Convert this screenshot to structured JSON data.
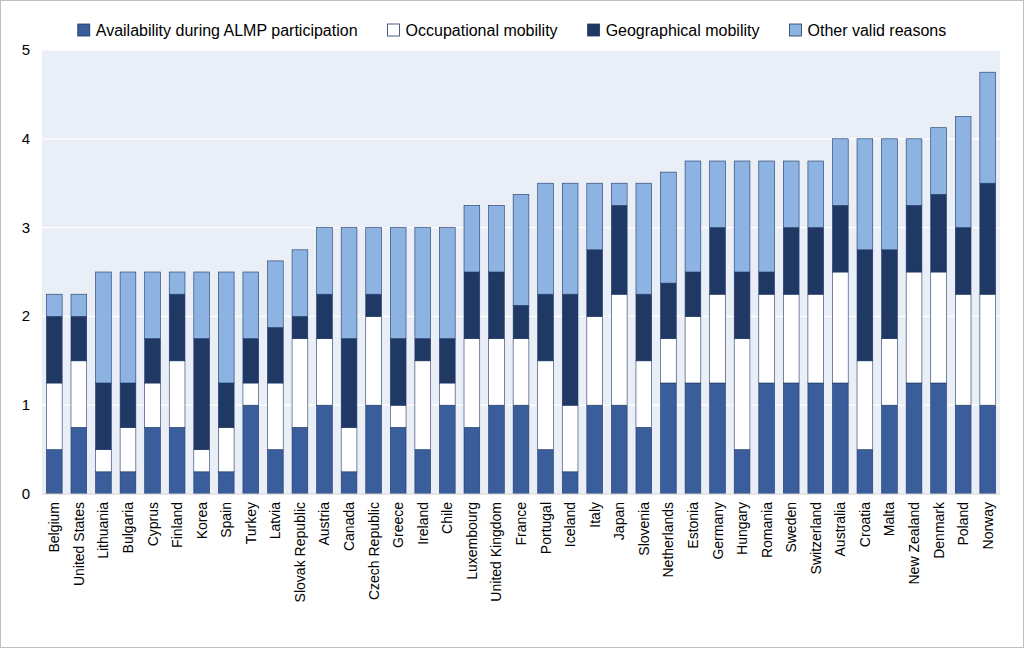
{
  "chart_data": {
    "type": "bar",
    "stacked": true,
    "grid": true,
    "legend": "top",
    "categories": [
      "Belgium",
      "United States",
      "Lithuania",
      "Bulgaria",
      "Cyprus",
      "Finland",
      "Korea",
      "Spain",
      "Turkey",
      "Latvia",
      "Slovak Republic",
      "Austria",
      "Canada",
      "Czech Republic",
      "Greece",
      "Ireland",
      "Chile",
      "Luxembourg",
      "United Kingdom",
      "France",
      "Portugal",
      "Iceland",
      "Italy",
      "Japan",
      "Slovenia",
      "Netherlands",
      "Estonia",
      "Germany",
      "Hungary",
      "Romania",
      "Sweden",
      "Switzerland",
      "Australia",
      "Croatia",
      "Malta",
      "New Zealand",
      "Denmark",
      "Poland",
      "Norway"
    ],
    "series": [
      {
        "name": "Availability during ALMP participation",
        "color": "#3a5e9c",
        "values": [
          0.5,
          0.75,
          0.25,
          0.25,
          0.75,
          0.75,
          0.25,
          0.25,
          1.0,
          0.5,
          0.75,
          1.0,
          0.25,
          1.0,
          0.75,
          0.5,
          1.0,
          0.75,
          1.0,
          1.0,
          0.5,
          0.25,
          1.0,
          1.0,
          0.75,
          1.25,
          1.25,
          1.25,
          0.5,
          1.25,
          1.25,
          1.25,
          1.25,
          0.5,
          1.0,
          1.25,
          1.25,
          1.0,
          1.0
        ]
      },
      {
        "name": "Occupational mobility",
        "color": "#ffffff",
        "values": [
          0.75,
          0.75,
          0.25,
          0.5,
          0.5,
          0.75,
          0.25,
          0.5,
          0.25,
          0.75,
          1.0,
          0.75,
          0.5,
          1.0,
          0.25,
          1.0,
          0.25,
          1.0,
          0.75,
          0.75,
          1.0,
          0.75,
          1.0,
          1.25,
          0.75,
          0.5,
          0.75,
          1.0,
          1.25,
          1.0,
          1.0,
          1.0,
          1.25,
          1.0,
          0.75,
          1.25,
          1.25,
          1.25,
          1.25
        ]
      },
      {
        "name": "Geographical mobility",
        "color": "#1f3864",
        "values": [
          0.75,
          0.5,
          0.75,
          0.5,
          0.5,
          0.75,
          1.25,
          0.5,
          0.5,
          0.625,
          0.25,
          0.5,
          1.0,
          0.25,
          0.75,
          0.25,
          0.5,
          0.75,
          0.75,
          0.375,
          0.75,
          1.25,
          0.75,
          1.0,
          0.75,
          0.625,
          0.5,
          0.75,
          0.75,
          0.25,
          0.75,
          0.75,
          0.75,
          1.25,
          1.0,
          0.75,
          0.875,
          0.75,
          1.25
        ]
      },
      {
        "name": "Other valid reasons",
        "color": "#8db3e2",
        "values": [
          0.25,
          0.25,
          1.25,
          1.25,
          0.75,
          0.25,
          0.75,
          1.25,
          0.75,
          0.75,
          0.75,
          0.75,
          1.25,
          0.75,
          1.25,
          1.25,
          1.25,
          0.75,
          0.75,
          1.25,
          1.25,
          1.25,
          0.75,
          0.25,
          1.25,
          1.25,
          1.25,
          0.75,
          1.25,
          1.25,
          0.75,
          0.75,
          0.75,
          1.25,
          1.25,
          0.75,
          0.75,
          1.25,
          1.25
        ]
      }
    ],
    "ylim": [
      0,
      5
    ],
    "yticks": [
      0,
      1,
      2,
      3,
      4,
      5
    ]
  }
}
